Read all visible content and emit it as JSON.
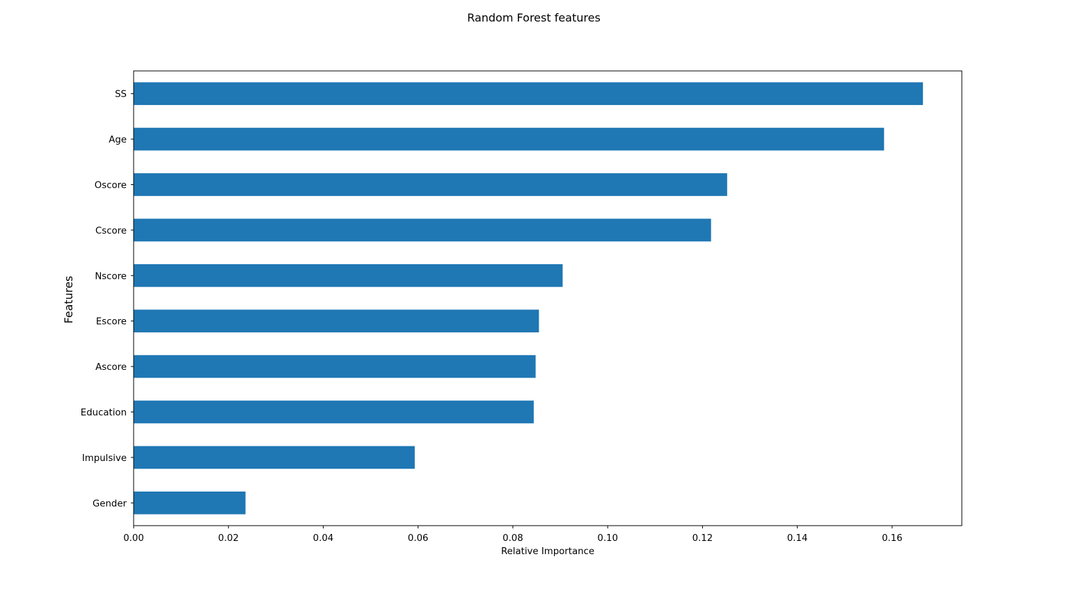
{
  "chart_data": {
    "type": "bar",
    "orientation": "horizontal",
    "title": "Random Forest features",
    "xlabel": "Relative Importance",
    "ylabel": "Features",
    "categories": [
      "Gender",
      "Impulsive",
      "Education",
      "Ascore",
      "Escore",
      "Nscore",
      "Cscore",
      "Oscore",
      "Age",
      "SS"
    ],
    "values": [
      0.0236,
      0.0593,
      0.0844,
      0.0848,
      0.0855,
      0.0905,
      0.1218,
      0.1252,
      0.1583,
      0.1665
    ],
    "xlim": [
      0.0,
      0.1747
    ],
    "xticks": [
      "0.00",
      "0.02",
      "0.04",
      "0.06",
      "0.08",
      "0.10",
      "0.12",
      "0.14",
      "0.16"
    ],
    "grid": false,
    "bar_color": "#1f77b4"
  }
}
